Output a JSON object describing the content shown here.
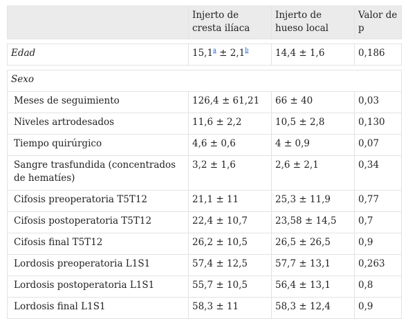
{
  "headers": [
    "",
    "Injerto de cresta ilíaca",
    "Injerto de hueso local",
    "Valor de p"
  ],
  "edad": {
    "label": "Edad",
    "c2": "15,1",
    "sup_a": "a",
    "c2_mid": " ± 2,1",
    "sup_b": "b",
    "c3": "14,4 ± 1,6",
    "c4": "0,186"
  },
  "sexo": {
    "label": "Sexo"
  },
  "rows": [
    {
      "label": "Meses de seguimiento",
      "c2": "126,4 ± 61,21",
      "c3": "66 ± 40",
      "c4": "0,03"
    },
    {
      "label": "Niveles artrodesados",
      "c2": "11,6 ± 2,2",
      "c3": "10,5 ± 2,8",
      "c4": "0,130"
    },
    {
      "label": "Tiempo quirúrgico",
      "c2": "4,6 ± 0,6",
      "c3": "4 ± 0,9",
      "c4": "0,07"
    },
    {
      "label": "Sangre trasfundida (concentrados de hematíes)",
      "c2": "3,2 ± 1,6",
      "c3": "2,6 ± 2,1",
      "c4": "0,34"
    },
    {
      "label": "Cifosis preoperatoria T5T12",
      "c2": "21,1 ± 11",
      "c3": "25,3 ± 11,9",
      "c4": "0,77"
    },
    {
      "label": "Cifosis postoperatoria T5T12",
      "c2": "22,4 ± 10,7",
      "c3": "23,58 ± 14,5",
      "c4": "0,7"
    },
    {
      "label": "Cifosis final T5T12",
      "c2": "26,2 ± 10,5",
      "c3": "26,5 ± 26,5",
      "c4": "0,9"
    },
    {
      "label": "Lordosis preoperatoria L1S1",
      "c2": "57,4 ± 12,5",
      "c3": "57,7 ± 13,1",
      "c4": "0,263"
    },
    {
      "label": "Lordosis postoperatoria L1S1",
      "c2": "55,7 ± 10,5",
      "c3": "56,4 ± 13,1",
      "c4": "0,8"
    },
    {
      "label": "Lordosis final L1S1",
      "c2": "58,3 ± 11",
      "c3": "58,3 ± 12,4",
      "c4": "0,9"
    }
  ]
}
